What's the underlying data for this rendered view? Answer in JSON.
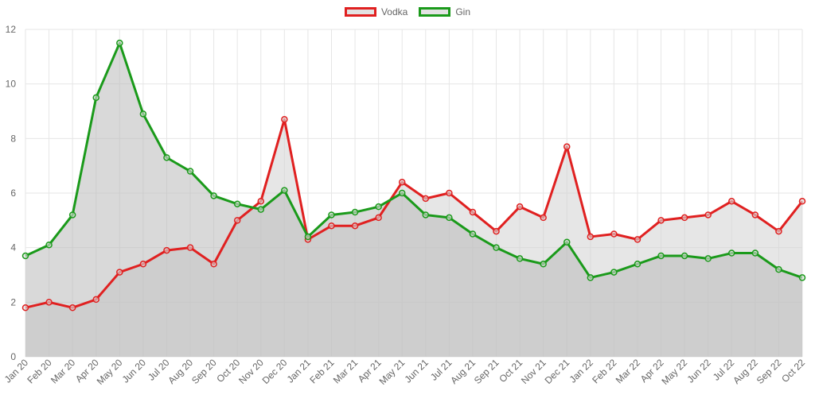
{
  "chart_data": {
    "type": "line",
    "title": "",
    "xlabel": "",
    "ylabel": "",
    "ylim": [
      0,
      12
    ],
    "yticks": [
      0,
      2,
      4,
      6,
      8,
      10,
      12
    ],
    "grid": true,
    "legend_position": "top-center",
    "categories": [
      "Jan 20",
      "Feb 20",
      "Mar 20",
      "Apr 20",
      "May 20",
      "Jun 20",
      "Jul 20",
      "Aug 20",
      "Sep 20",
      "Oct 20",
      "Nov 20",
      "Dec 20",
      "Jan 21",
      "Feb 21",
      "Mar 21",
      "Apr 21",
      "May 21",
      "Jun 21",
      "Jul 21",
      "Aug 21",
      "Sep 21",
      "Oct 21",
      "Nov 21",
      "Dec 21",
      "Jan 22",
      "Feb 22",
      "Mar 22",
      "Apr 22",
      "May 22",
      "Jun 22",
      "Jul 22",
      "Aug 22",
      "Sep 22",
      "Oct 22"
    ],
    "series": [
      {
        "name": "Vodka",
        "color": "#e02020",
        "fill": "rgba(210,210,210,0.55)",
        "values": [
          1.8,
          2.0,
          1.8,
          2.1,
          3.1,
          3.4,
          3.9,
          4.0,
          3.4,
          5.0,
          5.7,
          8.7,
          4.3,
          4.8,
          4.8,
          5.1,
          6.4,
          5.8,
          6.0,
          5.3,
          4.6,
          5.5,
          5.1,
          7.7,
          4.4,
          4.5,
          4.3,
          5.0,
          5.1,
          5.2,
          5.7,
          5.2,
          4.6,
          5.7
        ]
      },
      {
        "name": "Gin",
        "color": "#1a9a1a",
        "fill": "rgba(185,185,185,0.55)",
        "values": [
          3.7,
          4.1,
          5.2,
          9.5,
          11.5,
          8.9,
          7.3,
          6.8,
          5.9,
          5.6,
          5.4,
          6.1,
          4.4,
          5.2,
          5.3,
          5.5,
          6.0,
          5.2,
          5.1,
          4.5,
          4.0,
          3.6,
          3.4,
          4.2,
          2.9,
          3.1,
          3.4,
          3.7,
          3.7,
          3.6,
          3.8,
          3.8,
          3.2,
          2.9
        ]
      }
    ]
  }
}
